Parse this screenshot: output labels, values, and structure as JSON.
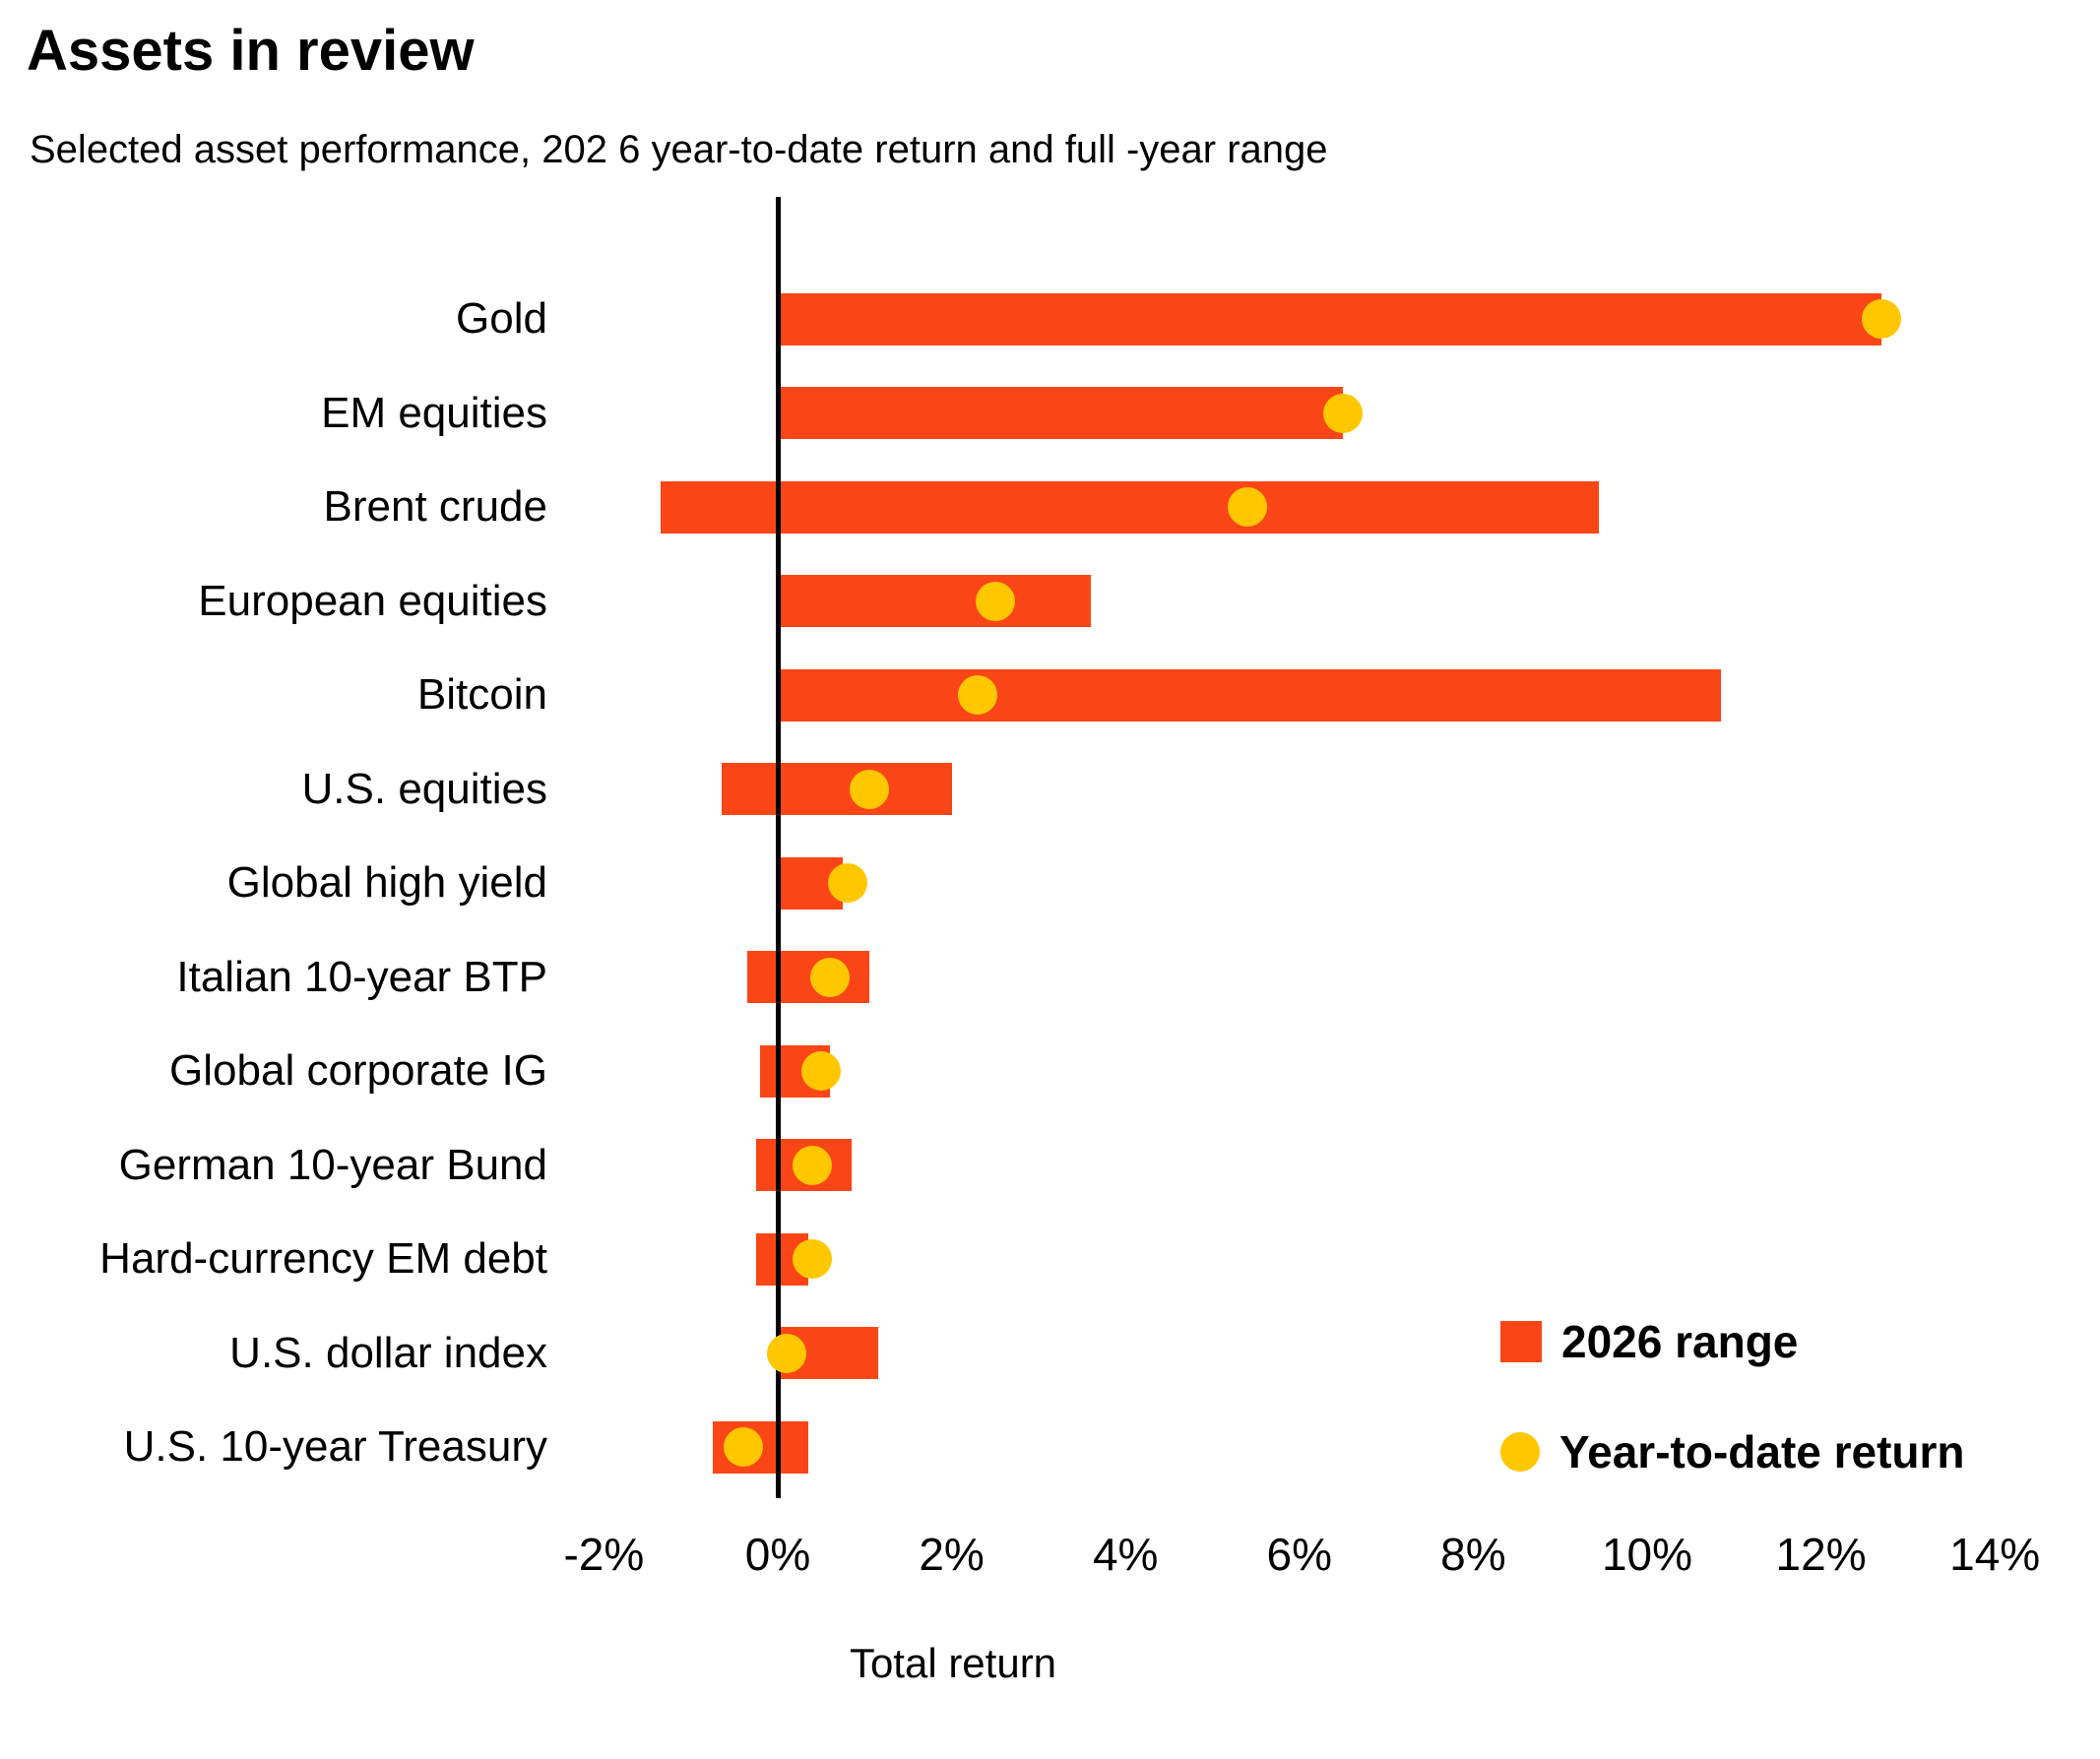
{
  "colors": {
    "range_bar": "#FA4616",
    "ytd_dot": "#FFC700",
    "axis_line": "#000000",
    "text": "#000000",
    "background": "#FFFFFF"
  },
  "chart_data": {
    "type": "bar",
    "variant": "horizontal-range-with-point",
    "title": "Assets in review",
    "subtitle": "Selected asset performance, 202 6 year-to-date return and full -year range",
    "xlabel": "Total return",
    "unit": "percent",
    "xlim": [
      -2,
      14
    ],
    "grid": false,
    "legend_position": "inside-lower-right",
    "x_ticks": [
      {
        "value": -2,
        "label": "-2%"
      },
      {
        "value": 0,
        "label": "0%"
      },
      {
        "value": 2,
        "label": "2%"
      },
      {
        "value": 4,
        "label": "4%"
      },
      {
        "value": 6,
        "label": "6%"
      },
      {
        "value": 8,
        "label": "8%"
      },
      {
        "value": 10,
        "label": "10%"
      },
      {
        "value": 12,
        "label": "12%"
      },
      {
        "value": 14,
        "label": "14%"
      }
    ],
    "series": [
      {
        "name": "2026 range",
        "type": "range-bar",
        "color_key": "range_bar"
      },
      {
        "name": "Year-to-date return",
        "type": "point",
        "color_key": "ytd_dot"
      }
    ],
    "rows": [
      {
        "label": "Gold",
        "range_low": 0.0,
        "range_high": 12.7,
        "ytd": 12.7
      },
      {
        "label": "EM equities",
        "range_low": 0.0,
        "range_high": 6.5,
        "ytd": 6.5
      },
      {
        "label": "Brent crude",
        "range_low": -1.35,
        "range_high": 9.45,
        "ytd": 5.4
      },
      {
        "label": "European equities",
        "range_low": 0.0,
        "range_high": 3.6,
        "ytd": 2.5
      },
      {
        "label": "Bitcoin",
        "range_low": 0.0,
        "range_high": 10.85,
        "ytd": 2.3
      },
      {
        "label": "U.S. equities",
        "range_low": -0.65,
        "range_high": 2.0,
        "ytd": 1.05
      },
      {
        "label": "Global high yield",
        "range_low": 0.0,
        "range_high": 0.75,
        "ytd": 0.8
      },
      {
        "label": "Italian 10-year BTP",
        "range_low": -0.35,
        "range_high": 1.05,
        "ytd": 0.6
      },
      {
        "label": "Global corporate IG",
        "range_low": -0.2,
        "range_high": 0.6,
        "ytd": 0.5
      },
      {
        "label": "German 10-year Bund",
        "range_low": -0.25,
        "range_high": 0.85,
        "ytd": 0.4
      },
      {
        "label": "Hard-currency EM debt",
        "range_low": -0.25,
        "range_high": 0.35,
        "ytd": 0.4
      },
      {
        "label": "U.S. dollar index",
        "range_low": 0.0,
        "range_high": 1.15,
        "ytd": 0.1
      },
      {
        "label": "U.S. 10-year Treasury",
        "range_low": -0.75,
        "range_high": 0.35,
        "ytd": -0.4
      }
    ]
  }
}
